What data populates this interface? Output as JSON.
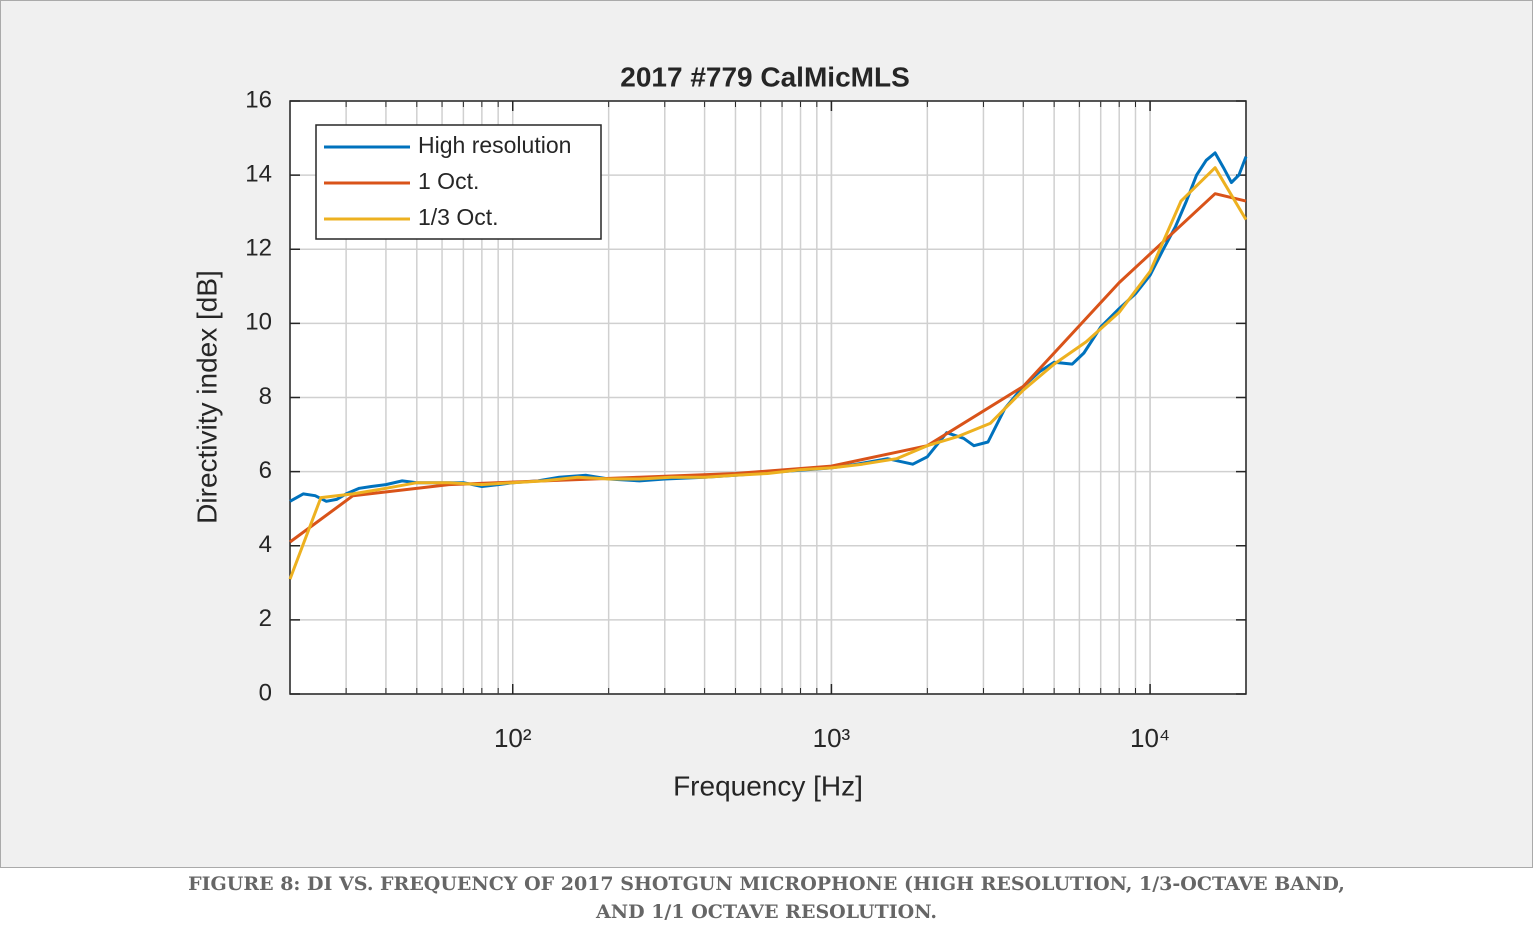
{
  "chart_data": {
    "type": "line",
    "title": "2017 #779 CalMicMLS",
    "xlabel": "Frequency [Hz]",
    "ylabel": "Directivity index [dB]",
    "xscale": "log",
    "grid": true,
    "legend": "upper left",
    "xlim": [
      20,
      20000
    ],
    "xticks": [
      {
        "value": 100,
        "label": "10²"
      },
      {
        "value": 1000,
        "label": "10³"
      },
      {
        "value": 10000,
        "label": "10⁴"
      }
    ],
    "ylim": [
      0,
      16
    ],
    "yticks": [
      0,
      2,
      4,
      6,
      8,
      10,
      12,
      14,
      16
    ],
    "series": [
      {
        "name": "High resolution",
        "color": "#0072bd",
        "x": [
          20,
          22,
          24,
          26,
          28,
          30,
          33,
          36,
          40,
          45,
          50,
          60,
          70,
          80,
          90,
          100,
          120,
          140,
          170,
          200,
          250,
          300,
          400,
          500,
          700,
          1000,
          1200,
          1500,
          1800,
          2000,
          2300,
          2600,
          2800,
          3100,
          3500,
          4000,
          4500,
          5000,
          5700,
          6200,
          7000,
          8000,
          9000,
          10000,
          11000,
          12000,
          13000,
          14000,
          15000,
          16000,
          17000,
          18000,
          19000,
          20000
        ],
        "values": [
          5.2,
          5.4,
          5.35,
          5.2,
          5.25,
          5.4,
          5.55,
          5.6,
          5.65,
          5.75,
          5.7,
          5.7,
          5.7,
          5.6,
          5.65,
          5.7,
          5.75,
          5.85,
          5.9,
          5.8,
          5.75,
          5.8,
          5.85,
          5.9,
          6.0,
          6.1,
          6.2,
          6.35,
          6.2,
          6.4,
          7.05,
          6.9,
          6.7,
          6.8,
          7.7,
          8.3,
          8.7,
          8.95,
          8.9,
          9.2,
          9.9,
          10.4,
          10.8,
          11.3,
          12.0,
          12.6,
          13.3,
          14.0,
          14.4,
          14.6,
          14.2,
          13.8,
          14.0,
          14.5
        ]
      },
      {
        "name": "1 Oct.",
        "color": "#d95319",
        "x": [
          20,
          31.5,
          63,
          125,
          250,
          500,
          1000,
          2000,
          4000,
          8000,
          16000,
          20000
        ],
        "values": [
          4.1,
          5.35,
          5.65,
          5.75,
          5.85,
          5.95,
          6.15,
          6.7,
          8.3,
          11.1,
          13.5,
          13.3
        ]
      },
      {
        "name": "1/3 Oct.",
        "color": "#edb120",
        "x": [
          20,
          25,
          31.5,
          40,
          50,
          63,
          80,
          100,
          125,
          160,
          200,
          250,
          315,
          400,
          500,
          630,
          800,
          1000,
          1250,
          1600,
          2000,
          2500,
          3150,
          4000,
          5000,
          6300,
          8000,
          10000,
          12500,
          16000,
          20000
        ],
        "values": [
          3.1,
          5.3,
          5.4,
          5.55,
          5.7,
          5.7,
          5.65,
          5.7,
          5.75,
          5.85,
          5.8,
          5.8,
          5.85,
          5.85,
          5.9,
          5.95,
          6.05,
          6.1,
          6.2,
          6.35,
          6.7,
          6.95,
          7.3,
          8.2,
          8.9,
          9.5,
          10.3,
          11.4,
          13.3,
          14.2,
          12.8
        ]
      }
    ]
  },
  "caption": [
    "FIGURE 8: DI VS. FREQUENCY OF 2017 SHOTGUN MICROPHONE (HIGH RESOLUTION, 1/3-OCTAVE BAND,",
    "AND 1/1 OCTAVE RESOLUTION."
  ]
}
